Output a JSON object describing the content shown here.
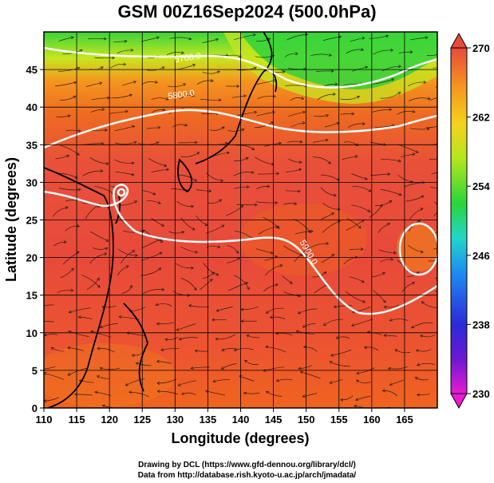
{
  "title": "GSM 00Z16Sep2024 (500.0hPa)",
  "axes": {
    "xlabel": "Longitude (degrees)",
    "ylabel": "Latitude  (degrees)",
    "xlim": [
      110,
      170
    ],
    "ylim": [
      0,
      50
    ],
    "xticks": [
      110,
      115,
      120,
      125,
      130,
      135,
      140,
      145,
      150,
      155,
      160,
      165
    ],
    "yticks": [
      0,
      5,
      10,
      15,
      20,
      25,
      30,
      35,
      40,
      45
    ]
  },
  "colorbar": {
    "ticks": [
      230,
      238,
      246,
      254,
      262,
      270
    ],
    "range": [
      230,
      270
    ],
    "colors": [
      "#e81ad4",
      "#3a2bd6",
      "#1e8cf0",
      "#22d6c8",
      "#3ad43a",
      "#b4e61e",
      "#f5d21e",
      "#f59a1e",
      "#f0641e",
      "#e84a3a"
    ]
  },
  "contours": [
    {
      "label": "5700.0",
      "lon": 132.0,
      "lat": 46.2
    },
    {
      "label": "5800.0",
      "lon": 131.0,
      "lat": 41.3
    },
    {
      "label": "5900.0",
      "lon": 150.0,
      "lat": 20.5
    }
  ],
  "credits": {
    "line1": "Drawing by DCL (https://www.gfd-dennou.org/library/dcl/)",
    "line2": "Data from http://database.rish.kyoto-u.ac.jp/arch/jmadata/"
  },
  "chart_data": {
    "type": "heatmap",
    "title": "GSM 00Z16Sep2024 (500.0hPa)",
    "xlabel": "Longitude (degrees)",
    "ylabel": "Latitude  (degrees)",
    "xlim": [
      110,
      170
    ],
    "ylim": [
      0,
      50
    ],
    "colorbar_range": [
      230,
      270
    ],
    "contour_levels": [
      5700.0,
      5800.0,
      5900.0
    ]
  }
}
